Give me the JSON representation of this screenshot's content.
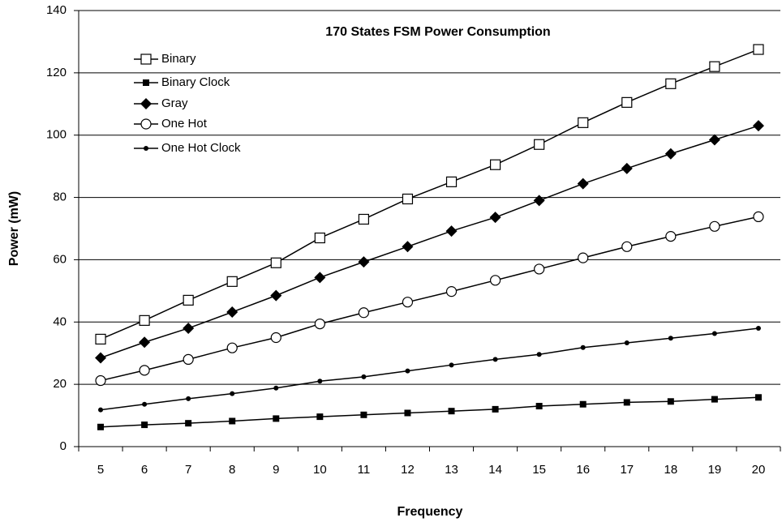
{
  "chart_data": {
    "type": "line",
    "title": "170 States FSM Power Consumption",
    "x_label": "Frequency",
    "y_label": "Power (mW)",
    "categories": [
      "5",
      "6",
      "7",
      "8",
      "9",
      "10",
      "11",
      "12",
      "13",
      "14",
      "15",
      "16",
      "17",
      "18",
      "19",
      "20"
    ],
    "ylim": [
      0,
      140
    ],
    "yticks": [
      0,
      20,
      40,
      60,
      80,
      100,
      120,
      140
    ],
    "grid": true,
    "legend": "upper left",
    "series": [
      {
        "name": "Binary",
        "color": "#000000",
        "marker": "square-open",
        "values": [
          34.5,
          40.5,
          47,
          53,
          59,
          67,
          73,
          79.5,
          85,
          90.5,
          97,
          104,
          110.5,
          116.5,
          122,
          127.5
        ]
      },
      {
        "name": "Binary Clock",
        "color": "#000000",
        "marker": "square-filled",
        "values": [
          6.3,
          7,
          7.5,
          8.2,
          9,
          9.6,
          10.2,
          10.8,
          11.4,
          12,
          13,
          13.6,
          14.2,
          14.5,
          15.2,
          15.8
        ]
      },
      {
        "name": "Gray",
        "color": "#000000",
        "marker": "diamond-filled",
        "values": [
          28.5,
          33.5,
          38,
          43.2,
          48.5,
          54.3,
          59.3,
          64.2,
          69.2,
          73.6,
          79,
          84.4,
          89.3,
          94,
          98.5,
          103
        ]
      },
      {
        "name": "One Hot",
        "color": "#000000",
        "marker": "circle-open",
        "values": [
          21.2,
          24.5,
          28,
          31.7,
          35,
          39.4,
          43,
          46.4,
          49.8,
          53.4,
          57,
          60.6,
          64.2,
          67.5,
          70.7,
          73.8
        ]
      },
      {
        "name": "One Hot Clock",
        "color": "#000000",
        "marker": "dot-filled",
        "values": [
          11.8,
          13.6,
          15.4,
          17,
          18.8,
          21,
          22.4,
          24.3,
          26.2,
          28,
          29.6,
          31.8,
          33.3,
          34.8,
          36.3,
          38
        ]
      }
    ]
  }
}
